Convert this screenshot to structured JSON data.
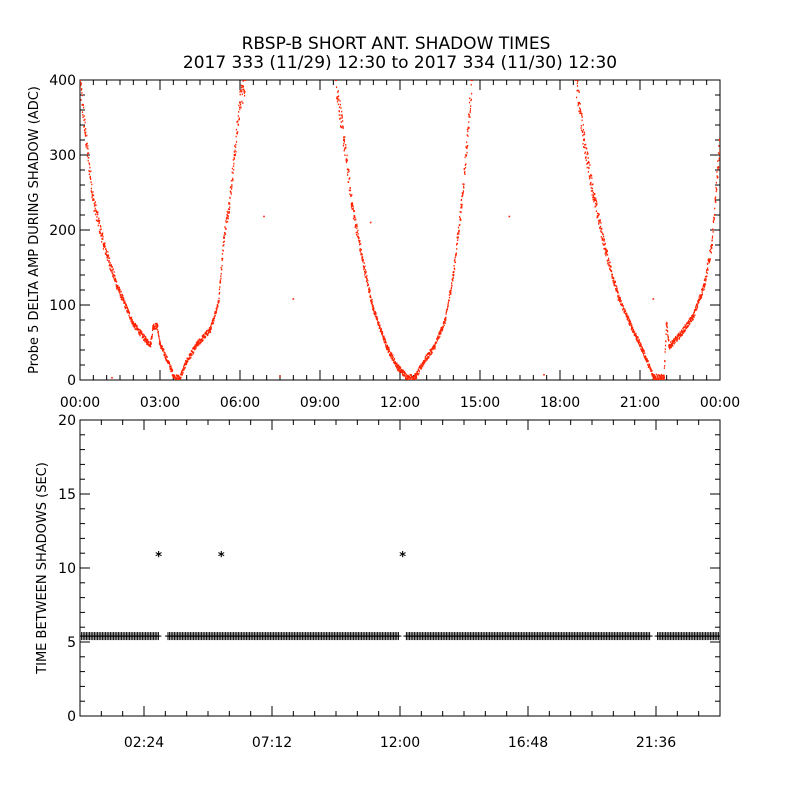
{
  "title_line1": "RBSP-B SHORT ANT. SHADOW TIMES",
  "title_line2": "2017 333 (11/29) 12:30 to 2017 334 (11/30) 12:30",
  "chart_data": [
    {
      "type": "scatter",
      "ylabel": "Probe 5 DELTA AMP DURING SHADOW (ADC)",
      "xlabel": "",
      "x_unit": "hours",
      "xlim": [
        0,
        24
      ],
      "ylim": [
        0,
        400
      ],
      "x_ticks": [
        0,
        3,
        6,
        9,
        12,
        15,
        18,
        21,
        24
      ],
      "x_tick_labels": [
        "00:00",
        "03:00",
        "06:00",
        "09:00",
        "12:00",
        "15:00",
        "18:00",
        "21:00",
        "00:00"
      ],
      "y_ticks": [
        0,
        100,
        200,
        300,
        400
      ],
      "y_tick_labels": [
        "0",
        "100",
        "200",
        "300",
        "400"
      ],
      "grid": false,
      "color": "#ff2200",
      "series": [
        {
          "values": [
            [
              0.0,
              400
            ],
            [
              0.2,
              330
            ],
            [
              0.5,
              240
            ],
            [
              0.9,
              180
            ],
            [
              1.4,
              125
            ],
            [
              2.0,
              75
            ],
            [
              2.5,
              52
            ],
            [
              2.65,
              48
            ],
            [
              2.75,
              72
            ],
            [
              2.9,
              72
            ],
            [
              3.0,
              48
            ],
            [
              3.3,
              25
            ],
            [
              3.55,
              3
            ],
            [
              3.75,
              3
            ],
            [
              4.0,
              25
            ],
            [
              4.4,
              48
            ],
            [
              4.9,
              68
            ],
            [
              5.2,
              105
            ],
            [
              5.4,
              190
            ],
            [
              5.6,
              235
            ],
            [
              5.8,
              300
            ],
            [
              6.0,
              370
            ],
            [
              6.2,
              400
            ],
            [
              9.6,
              400
            ],
            [
              9.9,
              320
            ],
            [
              10.2,
              235
            ],
            [
              10.6,
              160
            ],
            [
              11.0,
              95
            ],
            [
              11.5,
              45
            ],
            [
              11.9,
              18
            ],
            [
              12.3,
              3
            ],
            [
              12.6,
              5
            ],
            [
              12.9,
              25
            ],
            [
              13.3,
              45
            ],
            [
              13.7,
              80
            ],
            [
              14.0,
              140
            ],
            [
              14.3,
              230
            ],
            [
              14.5,
              310
            ],
            [
              14.7,
              400
            ],
            [
              18.6,
              400
            ],
            [
              18.9,
              320
            ],
            [
              19.3,
              240
            ],
            [
              19.7,
              175
            ],
            [
              20.2,
              110
            ],
            [
              20.7,
              70
            ],
            [
              21.1,
              40
            ],
            [
              21.5,
              5
            ],
            [
              21.9,
              3
            ],
            [
              22.0,
              75
            ],
            [
              22.1,
              45
            ],
            [
              22.5,
              60
            ],
            [
              23.0,
              85
            ],
            [
              23.4,
              125
            ],
            [
              23.7,
              180
            ],
            [
              24.0,
              320
            ]
          ]
        },
        {
          "name": "stray points",
          "values": [
            [
              6.9,
              218
            ],
            [
              8.0,
              108
            ],
            [
              10.9,
              210
            ],
            [
              16.1,
              218
            ],
            [
              21.5,
              108
            ],
            [
              17.4,
              7
            ],
            [
              1.2,
              3
            ],
            [
              7.5,
              5
            ]
          ]
        }
      ]
    },
    {
      "type": "scatter",
      "ylabel": "TIME BETWEEN SHADOWS (SEC)",
      "xlabel": "",
      "x_unit": "hours",
      "xlim": [
        0,
        24
      ],
      "ylim": [
        0,
        20
      ],
      "x_ticks": [
        2.4,
        7.2,
        12.0,
        16.8,
        21.6
      ],
      "x_tick_labels": [
        "02:24",
        "07:12",
        "12:00",
        "16:48",
        "21:36"
      ],
      "y_ticks": [
        0,
        5,
        10,
        15,
        20
      ],
      "y_tick_labels": [
        "0",
        "5",
        "10",
        "15",
        "20"
      ],
      "grid": false,
      "color": "#000000",
      "marker": "*",
      "baseline": {
        "y": 5.4,
        "x_range": [
          0,
          24
        ],
        "gaps": [
          [
            3.0,
            3.3
          ],
          [
            12.0,
            12.2
          ],
          [
            21.4,
            21.6
          ]
        ]
      },
      "series": [
        {
          "values": [
            [
              2.95,
              10.8
            ],
            [
              5.3,
              10.8
            ],
            [
              12.1,
              10.8
            ]
          ]
        }
      ]
    }
  ]
}
